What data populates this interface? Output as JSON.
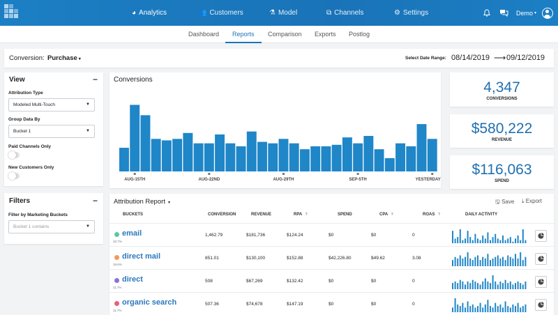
{
  "topnav": {
    "items": [
      {
        "label": "Analytics",
        "icon": "pie-chart-icon"
      },
      {
        "label": "Customers",
        "icon": "users-icon"
      },
      {
        "label": "Model",
        "icon": "flask-icon"
      },
      {
        "label": "Channels",
        "icon": "sitemap-icon"
      },
      {
        "label": "Settings",
        "icon": "gears-icon"
      }
    ],
    "user": "Demo"
  },
  "subnav": {
    "tabs": [
      "Dashboard",
      "Reports",
      "Comparison",
      "Exports",
      "Postlog"
    ],
    "active": "Reports"
  },
  "conversion": {
    "label": "Conversion:",
    "value": "Purchase",
    "date_label": "Select Date Range:",
    "start": "08/14/2019",
    "arrow": "⟶",
    "end": "09/12/2019"
  },
  "view": {
    "title": "View",
    "attribution_label": "Attribution Type",
    "attribution_value": "Modeled Multi-Touch",
    "group_label": "Group Data By",
    "group_value": "Bucket 1",
    "paid_label": "Paid Channels Only",
    "new_label": "New Customers Only"
  },
  "filters": {
    "title": "Filters",
    "bucket_label": "Filter by Marketing Buckets",
    "bucket_placeholder": "Bucket 1 contains"
  },
  "chart_data": {
    "type": "bar",
    "title": "Conversions",
    "values": [
      80,
      225,
      190,
      110,
      105,
      110,
      130,
      95,
      95,
      125,
      95,
      85,
      135,
      100,
      95,
      110,
      95,
      75,
      85,
      85,
      90,
      115,
      95,
      120,
      75,
      45,
      95,
      85,
      160,
      110
    ],
    "tick_labels": [
      "AUG-15TH",
      "AUG-22ND",
      "AUG-29TH",
      "SEP-5TH",
      "YESTERDAY"
    ],
    "tick_index": [
      1,
      8,
      15,
      22,
      29
    ],
    "ylim": [
      0,
      260
    ],
    "color": "#1f86c8"
  },
  "kpis": [
    {
      "value": "4,347",
      "label": "CONVERSIONS"
    },
    {
      "value": "$580,222",
      "label": "REVENUE"
    },
    {
      "value": "$116,063",
      "label": "SPEND"
    }
  ],
  "report": {
    "title": "Attribution Report",
    "save": "Save",
    "export": "Export",
    "columns": [
      "BUCKETS",
      "CONVERSION",
      "REVENUE",
      "RPA",
      "SPEND",
      "CPA",
      "ROAS",
      "DAILY ACTIVITY"
    ],
    "rows": [
      {
        "name": "email",
        "pct": "33.7%",
        "color": "#5bc7a1",
        "conversion": "1,462.79",
        "revenue": "$181,736",
        "rpa": "$124.24",
        "spend": "$0",
        "cpa": "$0",
        "roas": "0",
        "activity": [
          8,
          3,
          4,
          9,
          2,
          3,
          8,
          4,
          2,
          6,
          3,
          2,
          5,
          3,
          7,
          2,
          4,
          6,
          3,
          2,
          5,
          2,
          3,
          4,
          1,
          3,
          5,
          2,
          9,
          2
        ]
      },
      {
        "name": "direct mail",
        "pct": "19.6%",
        "color": "#f39a56",
        "conversion": "851.01",
        "revenue": "$130,100",
        "rpa": "$152.88",
        "spend": "$42,226.80",
        "cpa": "$49.62",
        "roas": "3.08",
        "activity": [
          4,
          6,
          5,
          7,
          5,
          6,
          9,
          5,
          4,
          6,
          7,
          4,
          6,
          5,
          8,
          4,
          5,
          6,
          7,
          5,
          6,
          4,
          7,
          6,
          5,
          8,
          5,
          9,
          4,
          6
        ]
      },
      {
        "name": "direct",
        "pct": "11.7%",
        "color": "#8a72d8",
        "conversion": "508",
        "revenue": "$67,269",
        "rpa": "$132.42",
        "spend": "$0",
        "cpa": "$0",
        "roas": "0",
        "activity": [
          4,
          5,
          4,
          6,
          5,
          3,
          5,
          4,
          6,
          5,
          4,
          3,
          5,
          7,
          5,
          4,
          9,
          5,
          3,
          5,
          4,
          6,
          4,
          5,
          3,
          4,
          5,
          4,
          3,
          5
        ]
      },
      {
        "name": "organic search",
        "pct": "11.7%",
        "color": "#e8607a",
        "conversion": "507.36",
        "revenue": "$74,678",
        "rpa": "$147.19",
        "spend": "$0",
        "cpa": "$0",
        "roas": "0",
        "activity": [
          3,
          9,
          5,
          4,
          6,
          3,
          7,
          4,
          5,
          3,
          4,
          6,
          3,
          5,
          8,
          4,
          3,
          6,
          4,
          5,
          3,
          7,
          4,
          3,
          5,
          4,
          6,
          3,
          4,
          5
        ]
      }
    ]
  }
}
